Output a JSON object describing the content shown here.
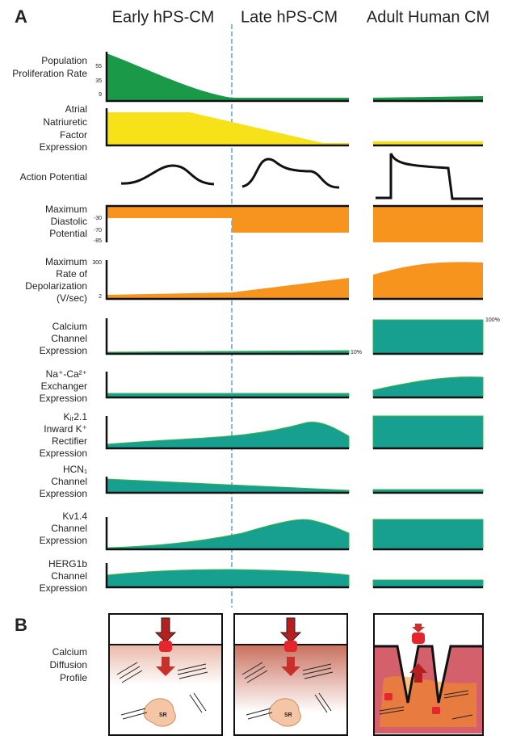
{
  "panel_a": {
    "label": "A",
    "columns": [
      "Early hPS-CM",
      "Late hPS-CM",
      "Adult Human CM"
    ],
    "rows": [
      {
        "label": [
          "Population",
          "Proliferation Rate"
        ],
        "ticks": [
          "55",
          "35",
          "9"
        ]
      },
      {
        "label": [
          "Atrial",
          "Natriuretic",
          "Factor",
          "Expression"
        ]
      },
      {
        "label": [
          "Action Potential"
        ]
      },
      {
        "label": [
          "Maximum",
          "Diastolic",
          "Potential"
        ],
        "ticks": [
          "-30",
          "-70",
          "-85"
        ]
      },
      {
        "label": [
          "Maximum",
          "Rate of",
          "Depolarization",
          "(V/sec)"
        ],
        "ticks": [
          "300",
          "2"
        ]
      },
      {
        "label": [
          "Calcium",
          "Channel",
          "Expression"
        ],
        "notes": [
          "10%",
          "100%"
        ]
      },
      {
        "label": [
          "Na⁺-Ca²⁺",
          "Exchanger",
          "Expression"
        ]
      },
      {
        "label": [
          "Kᵢᵣ2.1",
          "Inward K⁺",
          "Rectifier",
          "Expression"
        ]
      },
      {
        "label": [
          "HCN₁",
          "Channel",
          "Expression"
        ]
      },
      {
        "label": [
          "Kv1.4",
          "Channel",
          "Expression"
        ]
      },
      {
        "label": [
          "HERG1b",
          "Channel",
          "Expression"
        ]
      }
    ]
  },
  "panel_b": {
    "label": "B",
    "row_label": [
      "Calcium",
      "Diffusion",
      "Profile"
    ],
    "sr_label": "SR"
  }
}
